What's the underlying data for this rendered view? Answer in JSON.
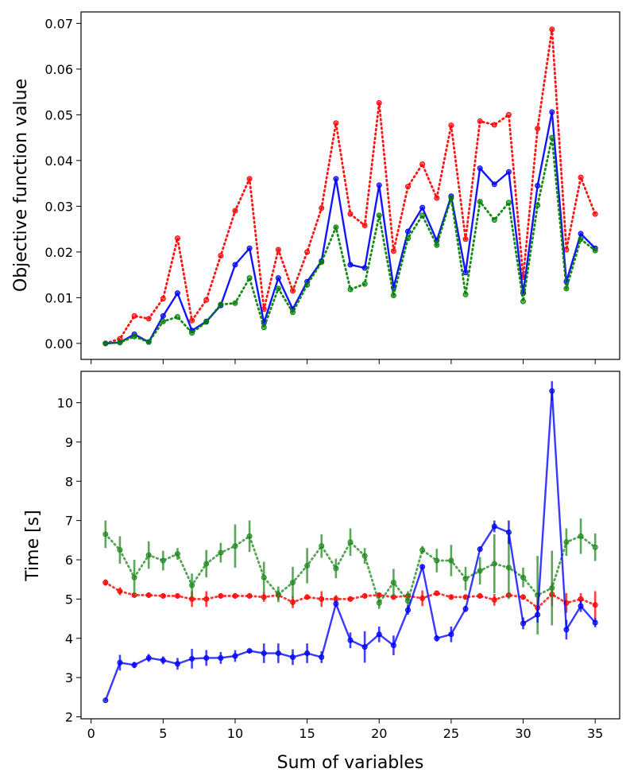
{
  "chart_data": [
    {
      "type": "line",
      "ylabel": "Objective function value",
      "xlabel": "",
      "xlim": [
        -0.7,
        36.7
      ],
      "ylim": [
        -0.0035,
        0.0725
      ],
      "xticks": [
        0,
        5,
        10,
        15,
        20,
        25,
        30,
        35
      ],
      "show_xtick_labels": false,
      "yticks": [
        0.0,
        0.01,
        0.02,
        0.03,
        0.04,
        0.05,
        0.06,
        0.07
      ],
      "ytick_labels": [
        "0.00",
        "0.01",
        "0.02",
        "0.03",
        "0.04",
        "0.05",
        "0.06",
        "0.07"
      ],
      "x": [
        1,
        2,
        3,
        4,
        5,
        6,
        7,
        8,
        9,
        10,
        11,
        12,
        13,
        14,
        15,
        16,
        17,
        18,
        19,
        20,
        21,
        22,
        23,
        24,
        25,
        26,
        27,
        28,
        29,
        30,
        31,
        32,
        33,
        34,
        35
      ],
      "series": [
        {
          "name": "red",
          "color": "#ff0000",
          "style": "dotted",
          "values": [
            0.0,
            0.001,
            0.006,
            0.0054,
            0.0098,
            0.023,
            0.005,
            0.0095,
            0.0192,
            0.029,
            0.036,
            0.0075,
            0.0205,
            0.0115,
            0.02,
            0.0296,
            0.0482,
            0.0283,
            0.0258,
            0.0526,
            0.0202,
            0.0343,
            0.0392,
            0.0318,
            0.0477,
            0.0228,
            0.0486,
            0.0478,
            0.05,
            0.0145,
            0.047,
            0.0687,
            0.0205,
            0.0363,
            0.0283
          ]
        },
        {
          "name": "blue",
          "color": "#0000ff",
          "style": "solid",
          "values": [
            0.0,
            0.0002,
            0.002,
            0.0003,
            0.006,
            0.011,
            0.0028,
            0.0048,
            0.0083,
            0.0172,
            0.0208,
            0.0045,
            0.0143,
            0.0075,
            0.0135,
            0.018,
            0.036,
            0.0172,
            0.0165,
            0.0346,
            0.0122,
            0.0245,
            0.0297,
            0.0225,
            0.0322,
            0.0155,
            0.0383,
            0.0348,
            0.0375,
            0.011,
            0.0345,
            0.0506,
            0.0135,
            0.024,
            0.0208
          ]
        },
        {
          "name": "green",
          "color": "#008000",
          "style": "dotted",
          "values": [
            0.0,
            0.0002,
            0.0015,
            0.0003,
            0.0048,
            0.0058,
            0.0023,
            0.0047,
            0.0085,
            0.0088,
            0.0143,
            0.0035,
            0.012,
            0.0068,
            0.0128,
            0.0178,
            0.0254,
            0.0118,
            0.013,
            0.028,
            0.0105,
            0.023,
            0.028,
            0.0215,
            0.0318,
            0.0107,
            0.031,
            0.027,
            0.0308,
            0.0092,
            0.0302,
            0.045,
            0.012,
            0.0228,
            0.0203
          ]
        }
      ]
    },
    {
      "type": "line",
      "ylabel": "Time [s]",
      "xlabel": "Sum of variables",
      "xlim": [
        -0.7,
        36.7
      ],
      "ylim": [
        1.95,
        10.8
      ],
      "xticks": [
        0,
        5,
        10,
        15,
        20,
        25,
        30,
        35
      ],
      "xtick_labels": [
        "0",
        "5",
        "10",
        "15",
        "20",
        "25",
        "30",
        "35"
      ],
      "show_xtick_labels": true,
      "yticks": [
        2,
        3,
        4,
        5,
        6,
        7,
        8,
        9,
        10
      ],
      "ytick_labels": [
        "2",
        "3",
        "4",
        "5",
        "6",
        "7",
        "8",
        "9",
        "10"
      ],
      "x": [
        1,
        2,
        3,
        4,
        5,
        6,
        7,
        8,
        9,
        10,
        11,
        12,
        13,
        14,
        15,
        16,
        17,
        18,
        19,
        20,
        21,
        22,
        23,
        24,
        25,
        26,
        27,
        28,
        29,
        30,
        31,
        32,
        33,
        34,
        35
      ],
      "series": [
        {
          "name": "red",
          "color": "#ff0000",
          "style": "dotted",
          "values": [
            5.42,
            5.2,
            5.1,
            5.1,
            5.08,
            5.08,
            5.0,
            5.0,
            5.08,
            5.08,
            5.08,
            5.05,
            5.1,
            4.92,
            5.05,
            5.0,
            5.0,
            5.0,
            5.08,
            5.1,
            5.05,
            5.08,
            5.02,
            5.15,
            5.05,
            5.05,
            5.08,
            4.98,
            5.1,
            5.05,
            4.78,
            5.12,
            4.9,
            5.0,
            4.85
          ],
          "errors": [
            0.08,
            0.1,
            0.05,
            0.05,
            0.05,
            0.05,
            0.2,
            0.2,
            0.05,
            0.05,
            0.05,
            0.12,
            0.12,
            0.15,
            0.05,
            0.2,
            0.1,
            0.05,
            0.05,
            0.05,
            0.05,
            0.05,
            0.2,
            0.05,
            0.05,
            0.05,
            0.05,
            0.15,
            0.05,
            0.05,
            0.25,
            0.3,
            0.25,
            0.15,
            0.35
          ]
        },
        {
          "name": "green",
          "color": "#228b22",
          "style": "dotted",
          "values": [
            6.65,
            6.25,
            5.55,
            6.12,
            5.98,
            6.15,
            5.35,
            5.9,
            6.18,
            6.35,
            6.6,
            5.55,
            5.12,
            5.42,
            5.85,
            6.35,
            5.78,
            6.45,
            6.1,
            4.9,
            5.42,
            4.95,
            6.25,
            5.98,
            5.98,
            5.52,
            5.72,
            5.9,
            5.8,
            5.55,
            5.1,
            5.28,
            6.45,
            6.6,
            6.32
          ],
          "errors": [
            0.35,
            0.35,
            0.45,
            0.35,
            0.25,
            0.15,
            0.3,
            0.35,
            0.25,
            0.55,
            0.4,
            0.4,
            0.2,
            0.4,
            0.45,
            0.3,
            0.25,
            0.35,
            0.2,
            0.15,
            0.35,
            0.25,
            0.1,
            0.3,
            0.4,
            0.3,
            0.35,
            0.75,
            0.8,
            0.25,
            1.0,
            0.95,
            0.35,
            0.45,
            0.35
          ]
        },
        {
          "name": "blue",
          "color": "#0000ff",
          "style": "solid",
          "values": [
            2.42,
            3.38,
            3.32,
            3.5,
            3.44,
            3.35,
            3.48,
            3.5,
            3.5,
            3.55,
            3.68,
            3.62,
            3.62,
            3.52,
            3.62,
            3.52,
            4.88,
            3.95,
            3.78,
            4.1,
            3.82,
            4.72,
            5.82,
            4.0,
            4.1,
            4.75,
            6.27,
            6.85,
            6.7,
            4.38,
            4.6,
            10.3,
            4.22,
            4.82,
            4.4
          ],
          "errors": [
            0.02,
            0.2,
            0.08,
            0.1,
            0.1,
            0.15,
            0.25,
            0.2,
            0.15,
            0.15,
            0.05,
            0.25,
            0.25,
            0.2,
            0.25,
            0.15,
            0.08,
            0.2,
            0.4,
            0.2,
            0.25,
            0.12,
            0.05,
            0.08,
            0.2,
            0.08,
            0.05,
            0.15,
            0.3,
            0.15,
            0.2,
            0.25,
            0.25,
            0.15,
            0.12
          ]
        }
      ]
    }
  ]
}
